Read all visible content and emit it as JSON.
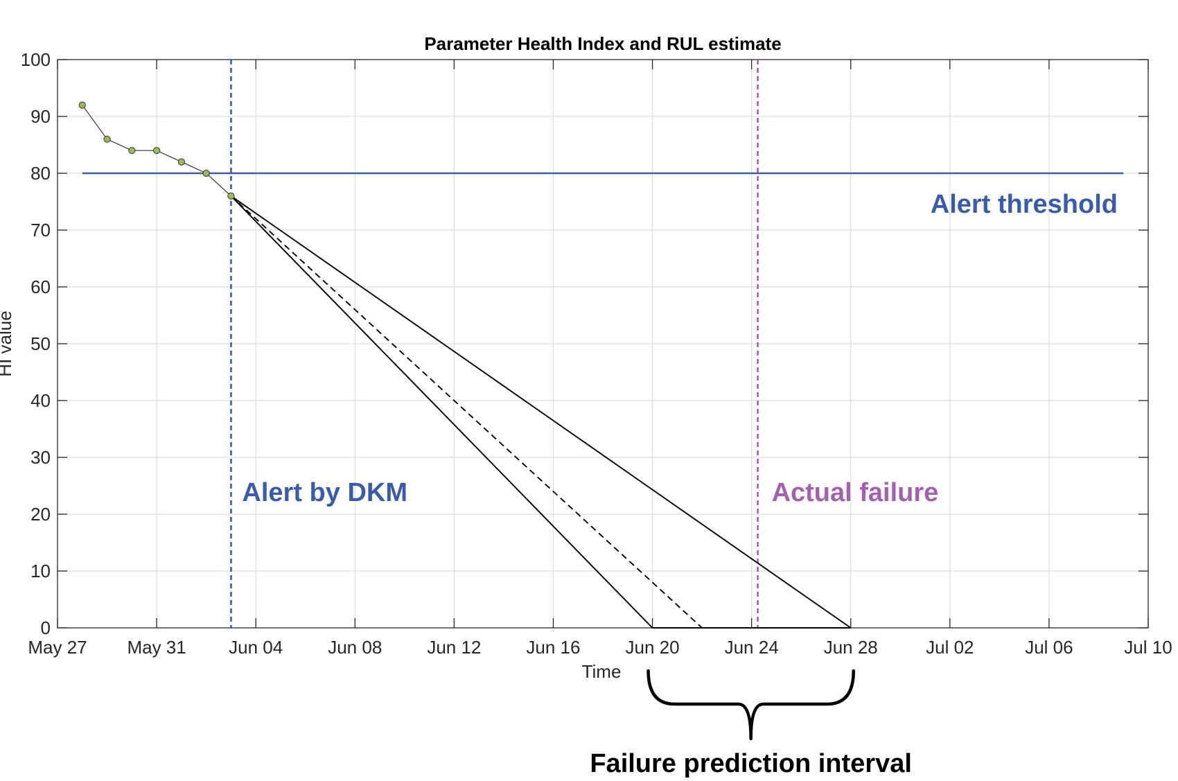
{
  "chart_data": {
    "type": "line",
    "title": "Parameter Health Index and RUL estimate",
    "xlabel": "Time",
    "ylabel": "HI value",
    "x_unit": "days since May 27",
    "xlim": [
      0,
      44
    ],
    "ylim": [
      0,
      100
    ],
    "grid": true,
    "yticks": [
      0,
      10,
      20,
      30,
      40,
      50,
      60,
      70,
      80,
      90,
      100
    ],
    "xticks": [
      {
        "value": 0,
        "label": "May 27"
      },
      {
        "value": 4,
        "label": "May 31"
      },
      {
        "value": 8,
        "label": "Jun 04"
      },
      {
        "value": 12,
        "label": "Jun 08"
      },
      {
        "value": 16,
        "label": "Jun 12"
      },
      {
        "value": 20,
        "label": "Jun 16"
      },
      {
        "value": 24,
        "label": "Jun 20"
      },
      {
        "value": 28,
        "label": "Jun 24"
      },
      {
        "value": 32,
        "label": "Jun 28"
      },
      {
        "value": 36,
        "label": "Jul 02"
      },
      {
        "value": 40,
        "label": "Jul 06"
      },
      {
        "value": 44,
        "label": "Jul 10"
      }
    ],
    "series": [
      {
        "name": "Health index",
        "style": "line-with-markers",
        "color": "#333333",
        "marker_color": "#9bbb59",
        "x": [
          1,
          2,
          3,
          4,
          5,
          6,
          7
        ],
        "y": [
          92,
          86,
          84,
          84,
          82,
          80,
          76
        ]
      },
      {
        "name": "Lower bound projection",
        "style": "solid",
        "color": "#000000",
        "x": [
          7,
          24
        ],
        "y": [
          76,
          0
        ]
      },
      {
        "name": "Mean projection",
        "style": "dashed",
        "color": "#000000",
        "x": [
          7,
          26
        ],
        "y": [
          76,
          0
        ]
      },
      {
        "name": "Upper bound projection",
        "style": "solid",
        "color": "#000000",
        "x": [
          7,
          32
        ],
        "y": [
          76,
          0
        ]
      },
      {
        "name": "Prediction interval baseline",
        "style": "solid",
        "color": "#000000",
        "x": [
          24,
          32
        ],
        "y": [
          0,
          0
        ]
      }
    ],
    "threshold": {
      "value": 80,
      "x_start": 1,
      "x_end": 43,
      "color": "#3a5ba9",
      "label": "Alert threshold"
    },
    "alert_line": {
      "x": 7,
      "color": "#3a5ba9",
      "label": "Alert by DKM"
    },
    "failure_line": {
      "x": 28.25,
      "color": "#a260ae",
      "label": "Actual failure"
    },
    "interval": {
      "x_start": 24,
      "x_end": 32,
      "label": "Failure prediction interval"
    }
  }
}
